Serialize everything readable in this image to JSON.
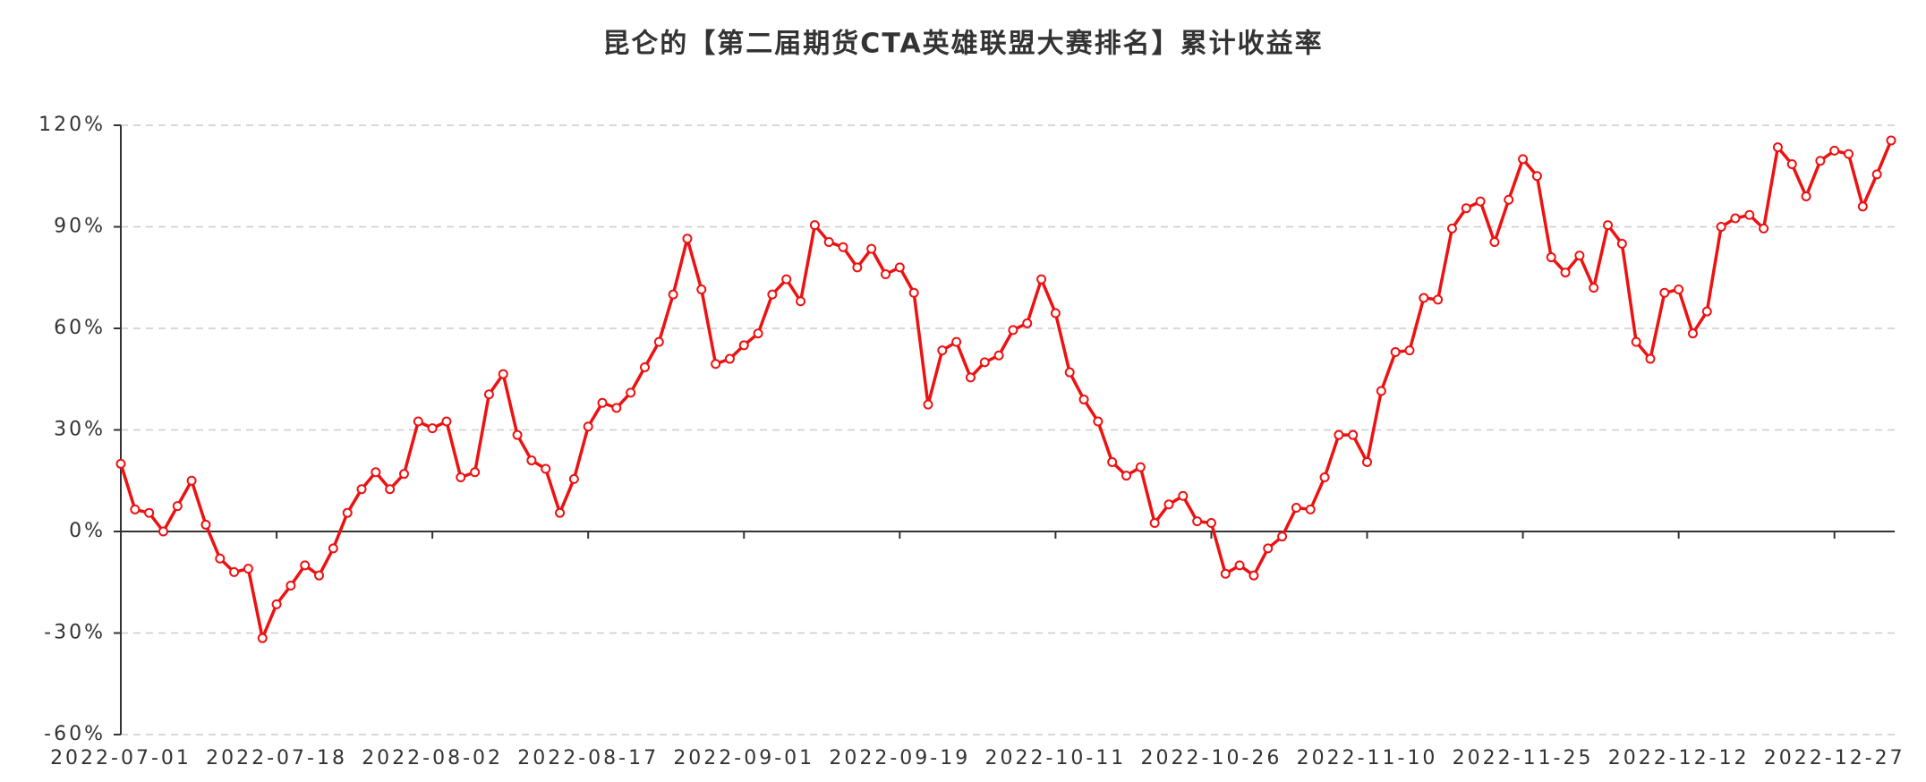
{
  "chart_data": {
    "type": "line",
    "title": "昆仑的【第二届期货CTA英雄联盟大赛排名】累计收益率",
    "categories": [
      "2022-07-01",
      null,
      null,
      null,
      null,
      null,
      null,
      null,
      null,
      null,
      null,
      "2022-07-18",
      null,
      null,
      null,
      null,
      null,
      null,
      null,
      null,
      null,
      null,
      "2022-08-02",
      null,
      null,
      null,
      null,
      null,
      null,
      null,
      null,
      null,
      null,
      "2022-08-17",
      null,
      null,
      null,
      null,
      null,
      null,
      null,
      null,
      null,
      null,
      "2022-09-01",
      null,
      null,
      null,
      null,
      null,
      null,
      null,
      null,
      null,
      null,
      "2022-09-19",
      null,
      null,
      null,
      null,
      null,
      null,
      null,
      null,
      null,
      null,
      "2022-10-11",
      null,
      null,
      null,
      null,
      null,
      null,
      null,
      null,
      null,
      null,
      "2022-10-26",
      null,
      null,
      null,
      null,
      null,
      null,
      null,
      null,
      null,
      null,
      "2022-11-10",
      null,
      null,
      null,
      null,
      null,
      null,
      null,
      null,
      null,
      null,
      "2022-11-25",
      null,
      null,
      null,
      null,
      null,
      null,
      null,
      null,
      null,
      null,
      "2022-12-12",
      null,
      null,
      null,
      null,
      null,
      null,
      null,
      null,
      null,
      null,
      "2022-12-27",
      null,
      null,
      null,
      null
    ],
    "values": [
      20,
      6.5,
      5.5,
      0,
      7.5,
      15,
      2,
      -8,
      -12,
      -11,
      -31.5,
      -21.5,
      -16,
      -10,
      -13,
      -5,
      5.5,
      12.5,
      17.5,
      12.5,
      17,
      32.5,
      30.5,
      32.5,
      16,
      17.5,
      40.5,
      46.5,
      28.5,
      21,
      18.5,
      5.5,
      15.5,
      31,
      38,
      36.5,
      41,
      48.5,
      56,
      70,
      86.5,
      71.5,
      49.5,
      51,
      55,
      58.5,
      70,
      74.5,
      68,
      90.5,
      85.5,
      84,
      78,
      83.5,
      76,
      78,
      70.5,
      37.5,
      53.5,
      56,
      45.5,
      50,
      52,
      59.5,
      61.5,
      74.5,
      64.5,
      47,
      39,
      32.5,
      20.5,
      16.5,
      19,
      2.5,
      8,
      10.5,
      3,
      2.5,
      -12.5,
      -10,
      -13,
      -5,
      -1.5,
      7,
      6.5,
      16,
      28.5,
      28.5,
      20.5,
      41.5,
      53,
      53.5,
      69,
      68.5,
      89.5,
      95.5,
      97.5,
      85.5,
      98,
      110,
      105,
      81,
      76.5,
      81.5,
      72,
      90.5,
      85,
      56,
      51,
      70.5,
      71.5,
      58.5,
      65,
      90,
      92.5,
      93.5,
      89.5,
      113.5,
      108.5,
      99,
      109.5,
      112.5,
      111.5,
      96,
      105.5,
      115.5
    ],
    "color": "#ee1111",
    "ylim": [
      -60,
      120
    ],
    "yticks": [
      {
        "value": -60,
        "label": "-60%"
      },
      {
        "value": -30,
        "label": "-30%"
      },
      {
        "value": 0,
        "label": "0%"
      },
      {
        "value": 30,
        "label": "30%"
      },
      {
        "value": 60,
        "label": "60%"
      },
      {
        "value": 90,
        "label": "90%"
      },
      {
        "value": 120,
        "label": "120%"
      }
    ],
    "grid": true
  }
}
